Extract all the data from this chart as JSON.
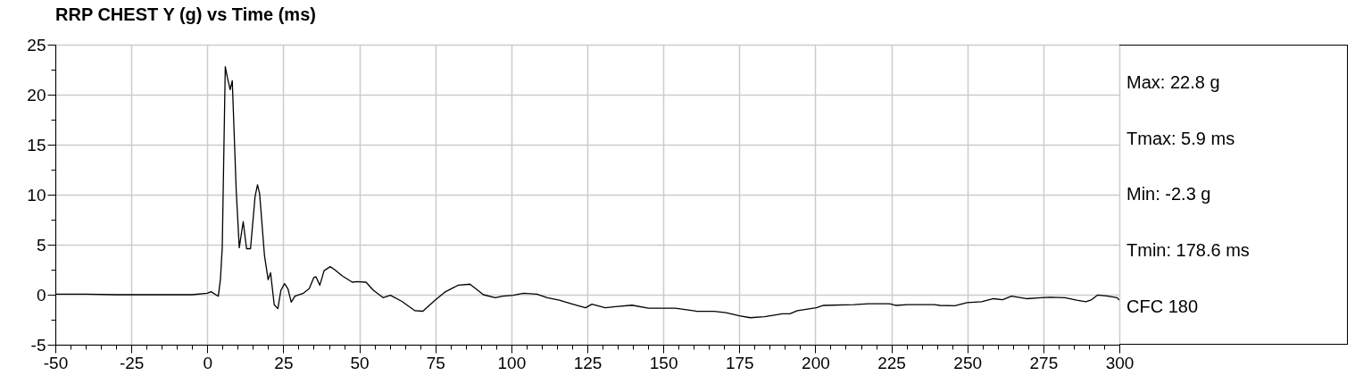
{
  "chart_data": {
    "type": "line",
    "title": "RRP CHEST Y (g) vs Time (ms)",
    "annotations": [
      "Max: 22.8 g",
      "Tmax: 5.9 ms",
      "Min: -2.3 g",
      "Tmin: 178.6 ms",
      "CFC 180"
    ],
    "series": [
      {
        "color": "#000000",
        "x": [
          -50,
          -40,
          -30,
          -20,
          -10,
          -5,
          0,
          1.2,
          3.6,
          4.3,
          4.9,
          5.9,
          6.6,
          7.5,
          8.2,
          9.5,
          10.5,
          11.8,
          12.9,
          14.2,
          15.7,
          16.5,
          17.2,
          18.8,
          20,
          20.8,
          22,
          23.2,
          24.2,
          25.4,
          26.5,
          27.6,
          28.8,
          31.6,
          33.5,
          35,
          35.7,
          37,
          38.4,
          40.4,
          41.9,
          44.3,
          47.7,
          49.2,
          52.2,
          54.6,
          57.8,
          60.2,
          63.9,
          68.3,
          70.9,
          74.7,
          78.1,
          82.5,
          86.4,
          90.8,
          94.7,
          97.2,
          100.6,
          104,
          108.4,
          111.8,
          115.8,
          119.7,
          124.4,
          126.5,
          130.9,
          134.3,
          139.7,
          145.1,
          153.9,
          160.8,
          166.7,
          170.6,
          175,
          178.6,
          183.3,
          189.2,
          191.6,
          194.1,
          200.3,
          202.7,
          212.7,
          217.5,
          224.4,
          226.4,
          230.3,
          239.1,
          241,
          245.9,
          249.9,
          254.7,
          258.6,
          261.6,
          264.5,
          269.4,
          274.3,
          277.2,
          282.1,
          286,
          289,
          290.9,
          292.9,
          295.8,
          299.3,
          300
        ],
        "values": [
          0.05,
          0.05,
          0,
          0,
          0,
          0,
          0.15,
          0.3,
          -0.15,
          1.5,
          4.7,
          22.8,
          21.7,
          20.5,
          21.4,
          10.4,
          4.7,
          7.3,
          4.6,
          4.6,
          9.8,
          11,
          10.1,
          3.9,
          1.5,
          2.2,
          -1,
          -1.4,
          0.45,
          1.1,
          0.6,
          -0.75,
          -0.15,
          0.15,
          0.6,
          1.7,
          1.8,
          0.95,
          2.4,
          2.8,
          2.5,
          1.9,
          1.25,
          1.3,
          1.25,
          0.45,
          -0.3,
          -0.06,
          -0.65,
          -1.6,
          -1.65,
          -0.6,
          0.25,
          0.95,
          1.05,
          0,
          -0.3,
          -0.15,
          -0.06,
          0.15,
          0.06,
          -0.3,
          -0.55,
          -0.9,
          -1.3,
          -0.95,
          -1.3,
          -1.2,
          -1.05,
          -1.35,
          -1.35,
          -1.65,
          -1.67,
          -1.8,
          -2.1,
          -2.3,
          -2.2,
          -1.9,
          -1.9,
          -1.6,
          -1.3,
          -1.07,
          -1,
          -0.9,
          -0.9,
          -1.07,
          -1,
          -1,
          -1.07,
          -1.1,
          -0.8,
          -0.7,
          -0.4,
          -0.5,
          -0.15,
          -0.4,
          -0.3,
          -0.25,
          -0.3,
          -0.55,
          -0.7,
          -0.5,
          -0.03,
          -0.12,
          -0.3,
          -0.55
        ]
      }
    ],
    "xlim": [
      -50,
      300
    ],
    "xticks": [
      -50,
      {
        "value": -45,
        "label": null
      },
      {
        "value": -40,
        "label": null
      },
      {
        "value": -35,
        "label": null
      },
      {
        "value": -30,
        "label": null
      },
      -25,
      {
        "value": -20,
        "label": null
      },
      {
        "value": -15,
        "label": null
      },
      {
        "value": -10,
        "label": null
      },
      {
        "value": -5,
        "label": null
      },
      0,
      {
        "value": 5,
        "label": null
      },
      {
        "value": 10,
        "label": null
      },
      {
        "value": 15,
        "label": null
      },
      {
        "value": 20,
        "label": null
      },
      25,
      {
        "value": 30,
        "label": null
      },
      {
        "value": 35,
        "label": null
      },
      {
        "value": 40,
        "label": null
      },
      {
        "value": 45,
        "label": null
      },
      50,
      {
        "value": 55,
        "label": null
      },
      {
        "value": 60,
        "label": null
      },
      {
        "value": 65,
        "label": null
      },
      {
        "value": 70,
        "label": null
      },
      75,
      {
        "value": 80,
        "label": null
      },
      {
        "value": 85,
        "label": null
      },
      {
        "value": 90,
        "label": null
      },
      {
        "value": 95,
        "label": null
      },
      100,
      {
        "value": 105,
        "label": null
      },
      {
        "value": 110,
        "label": null
      },
      {
        "value": 115,
        "label": null
      },
      {
        "value": 120,
        "label": null
      },
      125,
      {
        "value": 130,
        "label": null
      },
      {
        "value": 135,
        "label": null
      },
      {
        "value": 140,
        "label": null
      },
      {
        "value": 145,
        "label": null
      },
      150,
      {
        "value": 155,
        "label": null
      },
      {
        "value": 160,
        "label": null
      },
      {
        "value": 165,
        "label": null
      },
      {
        "value": 170,
        "label": null
      },
      175,
      {
        "value": 180,
        "label": null
      },
      {
        "value": 185,
        "label": null
      },
      {
        "value": 190,
        "label": null
      },
      {
        "value": 195,
        "label": null
      },
      200,
      {
        "value": 205,
        "label": null
      },
      {
        "value": 210,
        "label": null
      },
      {
        "value": 215,
        "label": null
      },
      {
        "value": 220,
        "label": null
      },
      225,
      {
        "value": 230,
        "label": null
      },
      {
        "value": 235,
        "label": null
      },
      {
        "value": 240,
        "label": null
      },
      {
        "value": 245,
        "label": null
      },
      250,
      {
        "value": 255,
        "label": null
      },
      {
        "value": 260,
        "label": null
      },
      {
        "value": 265,
        "label": null
      },
      {
        "value": 270,
        "label": null
      },
      275,
      {
        "value": 280,
        "label": null
      },
      {
        "value": 285,
        "label": null
      },
      {
        "value": 290,
        "label": null
      },
      {
        "value": 295,
        "label": null
      },
      300
    ],
    "ylim": [
      -5,
      25
    ],
    "yticks": [
      -5,
      {
        "value": -2.5,
        "label": null
      },
      0,
      {
        "value": 2.5,
        "label": null
      },
      5,
      {
        "value": 7.5,
        "label": null
      },
      10,
      {
        "value": 12.5,
        "label": null
      },
      15,
      {
        "value": 17.5,
        "label": null
      },
      20,
      {
        "value": 22.5,
        "label": null
      },
      25
    ],
    "grid": true,
    "line_style": "solid"
  }
}
